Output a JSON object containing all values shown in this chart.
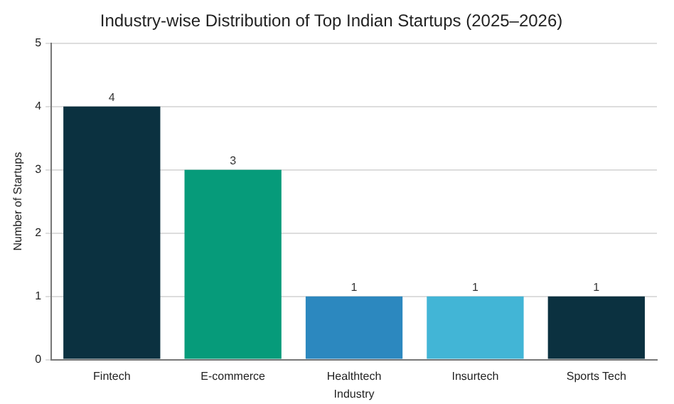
{
  "chart_data": {
    "type": "bar",
    "title": "Industry-wise Distribution of Top Indian Startups (2025–2026)",
    "xlabel": "Industry",
    "ylabel": "Number of Startups",
    "categories": [
      "Fintech",
      "E-commerce",
      "Healthtech",
      "Insurtech",
      "Sports Tech"
    ],
    "values": [
      4,
      3,
      1,
      1,
      1
    ],
    "colors": [
      "#0b3140",
      "#069b7a",
      "#2c88bf",
      "#42b5d6",
      "#0b3140"
    ],
    "ylim": [
      0,
      5
    ],
    "yticks": [
      0,
      1,
      2,
      3,
      4,
      5
    ],
    "grid": "y",
    "data_labels": true,
    "legend": false
  }
}
